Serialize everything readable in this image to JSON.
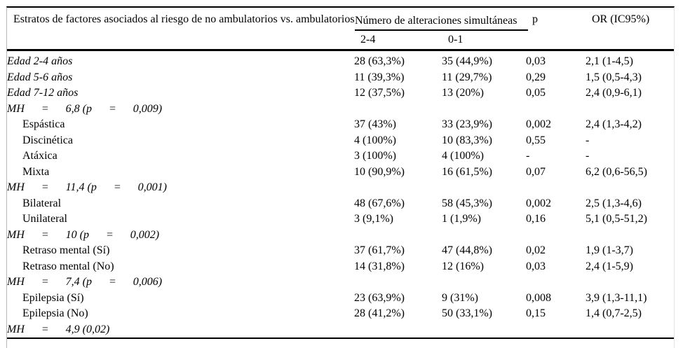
{
  "colors": {
    "text": "#000000",
    "rule": "#000000",
    "frame_side_border": "#c9c9c9",
    "background": "#ffffff"
  },
  "table": {
    "header": {
      "col_stratos": "Estratos de factores asociados al riesgo de no ambulatorios vs. ambulatorios",
      "col_group": "Número de alteraciones simultáneas",
      "sub_col_1": "2-4",
      "sub_col_2": "0-1",
      "col_p": "p",
      "col_or": "OR (IC95%)"
    },
    "rows": [
      {
        "style": "italic",
        "label": "Edad 2-4 años",
        "c24": "28 (63,3%)",
        "c01": "35 (44,9%)",
        "p": "0,03",
        "or": "2,1 (1-4,5)"
      },
      {
        "style": "italic",
        "label": "Edad 5-6 años",
        "c24": "11 (39,3%)",
        "c01": "11 (29,7%)",
        "p": "0,29",
        "or": "1,5 (0,5-4,3)"
      },
      {
        "style": "italic",
        "label": "Edad 7-12 años",
        "c24": "12 (37,5%)",
        "c01": "13 (20%)",
        "p": "0,05",
        "or": "2,4 (0,9-6,1)"
      },
      {
        "style": "mh",
        "label": "MH      =      6,8 (p      =      0,009)"
      },
      {
        "style": "indent",
        "label": "Espástica",
        "c24": "37 (43%)",
        "c01": "33 (23,9%)",
        "p": "0,002",
        "or": "2,4 (1,3-4,2)"
      },
      {
        "style": "indent",
        "label": "Discinética",
        "c24": "4 (100%)",
        "c01": "10 (83,3%)",
        "p": "0,55",
        "or": "-"
      },
      {
        "style": "indent",
        "label": "Atáxica",
        "c24": "3 (100%)",
        "c01": "4 (100%)",
        "p": "-",
        "or": "-"
      },
      {
        "style": "indent",
        "label": "Mixta",
        "c24": "10 (90,9%)",
        "c01": "16 (61,5%)",
        "p": "0,07",
        "or": "6,2 (0,6-56,5)"
      },
      {
        "style": "mh",
        "label": "MH      =      11,4 (p      =      0,001)"
      },
      {
        "style": "indent",
        "label": "Bilateral",
        "c24": "48 (67,6%)",
        "c01": "58 (45,3%)",
        "p": "0,002",
        "or": "2,5 (1,3-4,6)"
      },
      {
        "style": "indent",
        "label": "Unilateral",
        "c24": "3 (9,1%)",
        "c01": "1 (1,9%)",
        "p": "0,16",
        "or": "5,1 (0,5-51,2)"
      },
      {
        "style": "mh",
        "label": "MH      =      10 (p      =      0,002)"
      },
      {
        "style": "indent",
        "label": "Retraso mental (Sí)",
        "c24": "37 (61,7%)",
        "c01": "47 (44,8%)",
        "p": "0,02",
        "or": "1,9 (1-3,7)"
      },
      {
        "style": "indent",
        "label": "Retraso mental (No)",
        "c24": "14 (31,8%)",
        "c01": "12 (16%)",
        "p": "0,03",
        "or": "2,4 (1-5,9)"
      },
      {
        "style": "mh",
        "label": "MH      =      7,4 (p      =      0,006)"
      },
      {
        "style": "indent",
        "label": "Epilepsia (Sí)",
        "c24": "23 (63,9%)",
        "c01": "9 (31%)",
        "p": "0,008",
        "or": "3,9 (1,3-11,1)"
      },
      {
        "style": "indent",
        "label": "Epilepsia (No)",
        "c24": "28 (41,2%)",
        "c01": "50 (33,1%)",
        "p": "0,15",
        "or": "1,4 (0,7-2,5)"
      },
      {
        "style": "mh",
        "label": "MH      =      4,9 (0,02)"
      }
    ]
  }
}
